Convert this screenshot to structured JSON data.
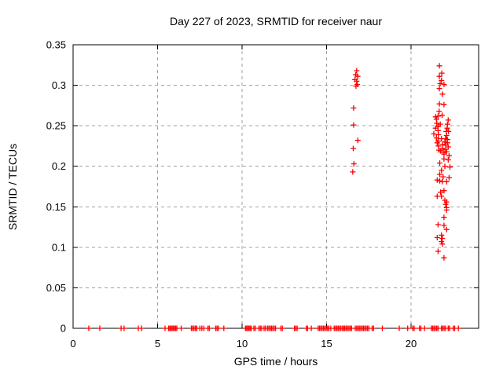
{
  "chart_data": {
    "type": "scatter",
    "title": "Day 227 of 2023, SRMTID for receiver naur",
    "xlabel": "GPS time / hours",
    "ylabel": "SRMTID / TECUs",
    "xlim": [
      0,
      24
    ],
    "ylim": [
      0,
      0.35
    ],
    "xticks": [
      0,
      5,
      10,
      15,
      20
    ],
    "xtick_labels": [
      "0",
      "5",
      "10",
      "15",
      "20"
    ],
    "yticks": [
      0,
      0.05,
      0.1,
      0.15,
      0.2,
      0.25,
      0.3,
      0.35
    ],
    "ytick_labels": [
      "0",
      "0.05",
      "0.1",
      "0.15",
      "0.2",
      "0.25",
      "0.3",
      "0.35"
    ],
    "grid": true,
    "legend_position": "none",
    "marker": "plus",
    "colors": {
      "marker": "#ff0000",
      "grid": "#a0a0a0",
      "axis": "#000000",
      "background": "#ffffff",
      "text": "#000000"
    },
    "series": [
      {
        "name": "SRMTID",
        "color": "#ff0000",
        "points": [
          [
            16.78,
            0.318
          ],
          [
            16.72,
            0.313
          ],
          [
            16.84,
            0.311
          ],
          [
            16.68,
            0.307
          ],
          [
            16.78,
            0.305
          ],
          [
            16.82,
            0.301
          ],
          [
            16.74,
            0.299
          ],
          [
            16.6,
            0.272
          ],
          [
            16.6,
            0.251
          ],
          [
            16.85,
            0.232
          ],
          [
            16.58,
            0.222
          ],
          [
            16.62,
            0.203
          ],
          [
            16.55,
            0.193
          ],
          [
            21.68,
            0.324
          ],
          [
            21.82,
            0.315
          ],
          [
            21.68,
            0.311
          ],
          [
            21.8,
            0.306
          ],
          [
            21.72,
            0.302
          ],
          [
            21.95,
            0.301
          ],
          [
            21.68,
            0.296
          ],
          [
            21.86,
            0.289
          ],
          [
            21.68,
            0.277
          ],
          [
            21.95,
            0.276
          ],
          [
            21.66,
            0.268
          ],
          [
            21.84,
            0.263
          ],
          [
            21.73,
            0.252
          ],
          [
            21.6,
            0.262
          ],
          [
            21.45,
            0.261
          ],
          [
            21.5,
            0.258
          ],
          [
            22.2,
            0.257
          ],
          [
            21.52,
            0.253
          ],
          [
            22.16,
            0.252
          ],
          [
            21.6,
            0.249
          ],
          [
            21.45,
            0.247
          ],
          [
            22.14,
            0.247
          ],
          [
            21.6,
            0.244
          ],
          [
            22.08,
            0.243
          ],
          [
            22.22,
            0.243
          ],
          [
            21.35,
            0.24
          ],
          [
            21.62,
            0.239
          ],
          [
            22.1,
            0.238
          ],
          [
            21.5,
            0.235
          ],
          [
            21.8,
            0.234
          ],
          [
            22.04,
            0.234
          ],
          [
            22.16,
            0.233
          ],
          [
            21.6,
            0.231
          ],
          [
            22.0,
            0.23
          ],
          [
            22.16,
            0.229
          ],
          [
            21.55,
            0.229
          ],
          [
            21.85,
            0.227
          ],
          [
            22.05,
            0.226
          ],
          [
            21.62,
            0.225
          ],
          [
            22.2,
            0.224
          ],
          [
            21.85,
            0.222
          ],
          [
            22.05,
            0.221
          ],
          [
            21.75,
            0.219
          ],
          [
            22.1,
            0.218
          ],
          [
            21.95,
            0.217
          ],
          [
            21.65,
            0.22
          ],
          [
            21.95,
            0.215
          ],
          [
            22.25,
            0.213
          ],
          [
            21.95,
            0.209
          ],
          [
            22.2,
            0.208
          ],
          [
            21.7,
            0.204
          ],
          [
            22.0,
            0.2
          ],
          [
            22.3,
            0.199
          ],
          [
            21.8,
            0.195
          ],
          [
            21.7,
            0.19
          ],
          [
            21.9,
            0.187
          ],
          [
            22.25,
            0.186
          ],
          [
            21.55,
            0.183
          ],
          [
            21.7,
            0.182
          ],
          [
            21.85,
            0.181
          ],
          [
            22.1,
            0.181
          ],
          [
            21.95,
            0.17
          ],
          [
            21.75,
            0.168
          ],
          [
            21.55,
            0.163
          ],
          [
            21.8,
            0.163
          ],
          [
            22.0,
            0.158
          ],
          [
            22.1,
            0.156
          ],
          [
            22.05,
            0.153
          ],
          [
            22.1,
            0.149
          ],
          [
            22.1,
            0.146
          ],
          [
            21.95,
            0.137
          ],
          [
            21.6,
            0.128
          ],
          [
            21.95,
            0.127
          ],
          [
            22.1,
            0.122
          ],
          [
            21.8,
            0.115
          ],
          [
            21.55,
            0.112
          ],
          [
            21.85,
            0.111
          ],
          [
            21.8,
            0.107
          ],
          [
            21.85,
            0.104
          ],
          [
            21.6,
            0.095
          ],
          [
            21.95,
            0.087
          ],
          [
            0.93,
            0
          ],
          [
            1.58,
            0
          ],
          [
            2.84,
            0
          ],
          [
            3.02,
            0
          ],
          [
            3.86,
            0
          ],
          [
            4.05,
            0
          ],
          [
            5.44,
            0
          ],
          [
            5.65,
            0
          ],
          [
            5.72,
            0
          ],
          [
            5.79,
            0
          ],
          [
            5.86,
            0
          ],
          [
            5.93,
            0
          ],
          [
            6.0,
            0
          ],
          [
            6.07,
            0
          ],
          [
            6.14,
            0
          ],
          [
            6.4,
            0
          ],
          [
            7.0,
            0
          ],
          [
            7.08,
            0
          ],
          [
            7.16,
            0
          ],
          [
            7.24,
            0
          ],
          [
            7.32,
            0
          ],
          [
            7.5,
            0
          ],
          [
            7.62,
            0
          ],
          [
            7.74,
            0
          ],
          [
            7.98,
            0
          ],
          [
            8.06,
            0
          ],
          [
            8.44,
            0
          ],
          [
            8.52,
            0
          ],
          [
            8.6,
            0
          ],
          [
            8.92,
            0
          ],
          [
            10.2,
            0
          ],
          [
            10.27,
            0
          ],
          [
            10.34,
            0
          ],
          [
            10.41,
            0
          ],
          [
            10.48,
            0
          ],
          [
            10.55,
            0
          ],
          [
            10.7,
            0
          ],
          [
            10.78,
            0
          ],
          [
            11.0,
            0
          ],
          [
            11.08,
            0
          ],
          [
            11.16,
            0
          ],
          [
            11.3,
            0
          ],
          [
            11.38,
            0
          ],
          [
            11.5,
            0
          ],
          [
            11.58,
            0
          ],
          [
            11.66,
            0
          ],
          [
            11.74,
            0
          ],
          [
            11.82,
            0
          ],
          [
            11.9,
            0
          ],
          [
            11.98,
            0
          ],
          [
            12.3,
            0
          ],
          [
            12.38,
            0
          ],
          [
            13.1,
            0
          ],
          [
            13.18,
            0
          ],
          [
            13.26,
            0
          ],
          [
            13.8,
            0
          ],
          [
            13.88,
            0
          ],
          [
            14.1,
            0
          ],
          [
            14.5,
            0
          ],
          [
            14.58,
            0
          ],
          [
            14.66,
            0
          ],
          [
            14.74,
            0
          ],
          [
            14.82,
            0
          ],
          [
            14.9,
            0
          ],
          [
            14.98,
            0
          ],
          [
            15.06,
            0
          ],
          [
            15.14,
            0
          ],
          [
            15.25,
            0
          ],
          [
            15.45,
            0
          ],
          [
            15.53,
            0
          ],
          [
            15.61,
            0
          ],
          [
            15.69,
            0
          ],
          [
            15.77,
            0
          ],
          [
            15.85,
            0
          ],
          [
            15.95,
            0
          ],
          [
            16.0,
            0
          ],
          [
            16.08,
            0
          ],
          [
            16.16,
            0
          ],
          [
            16.24,
            0
          ],
          [
            16.32,
            0
          ],
          [
            16.4,
            0
          ],
          [
            16.48,
            0
          ],
          [
            16.7,
            0
          ],
          [
            16.78,
            0
          ],
          [
            16.86,
            0
          ],
          [
            16.94,
            0
          ],
          [
            17.02,
            0
          ],
          [
            17.1,
            0
          ],
          [
            17.18,
            0
          ],
          [
            17.26,
            0
          ],
          [
            17.34,
            0
          ],
          [
            17.42,
            0
          ],
          [
            17.5,
            0
          ],
          [
            17.7,
            0
          ],
          [
            17.78,
            0
          ],
          [
            18.3,
            0
          ],
          [
            19.3,
            0
          ],
          [
            19.8,
            0
          ],
          [
            20.1,
            0
          ],
          [
            20.18,
            0
          ],
          [
            20.5,
            0
          ],
          [
            20.58,
            0
          ],
          [
            20.8,
            0
          ],
          [
            21.2,
            0
          ],
          [
            21.28,
            0
          ],
          [
            21.36,
            0
          ],
          [
            21.44,
            0
          ],
          [
            21.52,
            0
          ],
          [
            21.6,
            0
          ],
          [
            21.8,
            0
          ],
          [
            21.88,
            0
          ],
          [
            21.96,
            0
          ],
          [
            22.04,
            0
          ],
          [
            22.2,
            0
          ],
          [
            22.28,
            0
          ],
          [
            22.5,
            0
          ],
          [
            22.58,
            0
          ],
          [
            22.8,
            0
          ]
        ]
      }
    ]
  }
}
